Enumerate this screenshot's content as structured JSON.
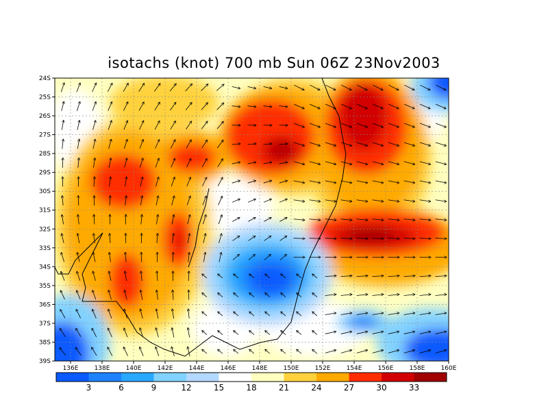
{
  "title": "isotachs (knot) 700 mb Sun 06Z 23Nov2003",
  "map": {
    "lon_range": [
      135,
      160
    ],
    "lat_range": [
      -39,
      -24
    ],
    "lon_ticks": [
      "136E",
      "138E",
      "140E",
      "142E",
      "144E",
      "146E",
      "148E",
      "150E",
      "152E",
      "154E",
      "156E",
      "158E",
      "160E"
    ],
    "lat_ticks": [
      "24S",
      "25S",
      "26S",
      "27S",
      "28S",
      "29S",
      "30S",
      "31S",
      "32S",
      "33S",
      "34S",
      "35S",
      "36S",
      "37S",
      "38S",
      "39S"
    ],
    "grid": true
  },
  "colorbar": {
    "labels": [
      "3",
      "6",
      "9",
      "12",
      "15",
      "18",
      "21",
      "24",
      "27",
      "30",
      "33"
    ],
    "colors": [
      "#0a5aff",
      "#1e82ff",
      "#28a8ff",
      "#82d2ff",
      "#b4d8ff",
      "#ffffff",
      "#ffffc0",
      "#ffd23c",
      "#ffaa00",
      "#ff2d00",
      "#d20000",
      "#a00000"
    ]
  }
}
